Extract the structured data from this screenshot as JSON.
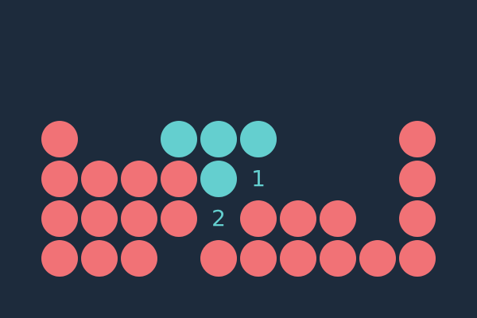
{
  "colors": {
    "background": "#1d2b3c",
    "placed": "#f17276",
    "active": "#64cfcf",
    "marker_text": "#64cfcf"
  },
  "board": {
    "columns": 12,
    "rows": 8,
    "cells": [
      {
        "row": 3,
        "col": 1,
        "state": "placed"
      },
      {
        "row": 3,
        "col": 4,
        "state": "active"
      },
      {
        "row": 3,
        "col": 5,
        "state": "active"
      },
      {
        "row": 3,
        "col": 6,
        "state": "active"
      },
      {
        "row": 3,
        "col": 10,
        "state": "placed"
      },
      {
        "row": 4,
        "col": 1,
        "state": "placed"
      },
      {
        "row": 4,
        "col": 2,
        "state": "placed"
      },
      {
        "row": 4,
        "col": 3,
        "state": "placed"
      },
      {
        "row": 4,
        "col": 4,
        "state": "placed"
      },
      {
        "row": 4,
        "col": 5,
        "state": "active"
      },
      {
        "row": 4,
        "col": 10,
        "state": "placed"
      },
      {
        "row": 5,
        "col": 1,
        "state": "placed"
      },
      {
        "row": 5,
        "col": 2,
        "state": "placed"
      },
      {
        "row": 5,
        "col": 3,
        "state": "placed"
      },
      {
        "row": 5,
        "col": 4,
        "state": "placed"
      },
      {
        "row": 5,
        "col": 6,
        "state": "placed"
      },
      {
        "row": 5,
        "col": 7,
        "state": "placed"
      },
      {
        "row": 5,
        "col": 8,
        "state": "placed"
      },
      {
        "row": 5,
        "col": 10,
        "state": "placed"
      },
      {
        "row": 6,
        "col": 1,
        "state": "placed"
      },
      {
        "row": 6,
        "col": 2,
        "state": "placed"
      },
      {
        "row": 6,
        "col": 3,
        "state": "placed"
      },
      {
        "row": 6,
        "col": 5,
        "state": "placed"
      },
      {
        "row": 6,
        "col": 6,
        "state": "placed"
      },
      {
        "row": 6,
        "col": 7,
        "state": "placed"
      },
      {
        "row": 6,
        "col": 8,
        "state": "placed"
      },
      {
        "row": 6,
        "col": 9,
        "state": "placed"
      },
      {
        "row": 6,
        "col": 10,
        "state": "placed"
      }
    ],
    "markers": [
      {
        "row": 4,
        "col": 6,
        "label": "1"
      },
      {
        "row": 5,
        "col": 5,
        "label": "2"
      }
    ]
  }
}
